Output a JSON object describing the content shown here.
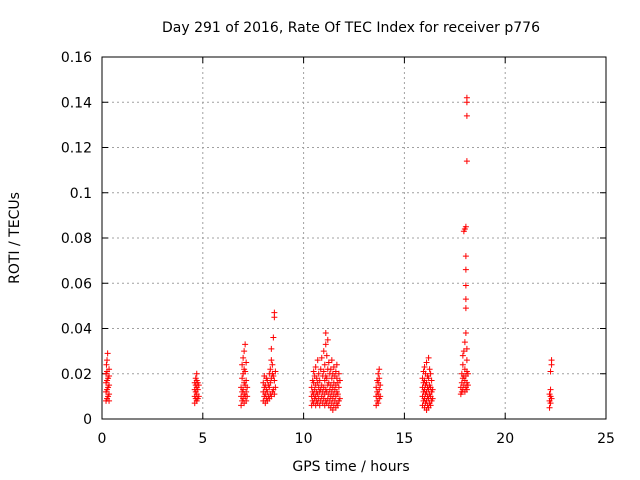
{
  "colors": {
    "marker": "#ff0000",
    "grid": "#a0a0a0",
    "axis": "#000000"
  },
  "chart_data": {
    "type": "scatter",
    "title": "Day 291 of 2016, Rate Of TEC Index for receiver p776",
    "xlabel": "GPS time / hours",
    "ylabel": "ROTI / TECUs",
    "xlim": [
      0,
      25
    ],
    "ylim": [
      0,
      0.16
    ],
    "xticks": [
      0,
      5,
      10,
      15,
      20,
      25
    ],
    "xtick_labels": [
      "0",
      "5",
      "10",
      "15",
      "20",
      "25"
    ],
    "yticks": [
      0,
      0.02,
      0.04,
      0.06,
      0.08,
      0.1,
      0.12,
      0.14,
      0.16
    ],
    "ytick_labels": [
      "0",
      "0.02",
      "0.04",
      "0.06",
      "0.08",
      "0.1",
      "0.12",
      "0.14",
      "0.16"
    ],
    "grid": true,
    "marker": "+",
    "series": [
      {
        "name": "ROTI",
        "points": [
          [
            0.2,
            0.008
          ],
          [
            0.2,
            0.012
          ],
          [
            0.2,
            0.016
          ],
          [
            0.2,
            0.02
          ],
          [
            0.22,
            0.024
          ],
          [
            0.25,
            0.009
          ],
          [
            0.25,
            0.013
          ],
          [
            0.25,
            0.017
          ],
          [
            0.25,
            0.021
          ],
          [
            0.25,
            0.026
          ],
          [
            0.28,
            0.029
          ],
          [
            0.3,
            0.01
          ],
          [
            0.3,
            0.014
          ],
          [
            0.3,
            0.018
          ],
          [
            0.35,
            0.011
          ],
          [
            0.35,
            0.015
          ],
          [
            0.35,
            0.019
          ],
          [
            0.35,
            0.008
          ],
          [
            0.35,
            0.022
          ],
          [
            4.6,
            0.007
          ],
          [
            4.6,
            0.01
          ],
          [
            4.6,
            0.013
          ],
          [
            4.6,
            0.016
          ],
          [
            4.65,
            0.009
          ],
          [
            4.65,
            0.012
          ],
          [
            4.65,
            0.015
          ],
          [
            4.65,
            0.018
          ],
          [
            4.7,
            0.008
          ],
          [
            4.7,
            0.011
          ],
          [
            4.7,
            0.014
          ],
          [
            4.7,
            0.017
          ],
          [
            4.7,
            0.02
          ],
          [
            4.75,
            0.009
          ],
          [
            4.75,
            0.013
          ],
          [
            4.75,
            0.016
          ],
          [
            4.8,
            0.01
          ],
          [
            4.8,
            0.015
          ],
          [
            6.9,
            0.006
          ],
          [
            6.9,
            0.01
          ],
          [
            6.9,
            0.014
          ],
          [
            6.95,
            0.008
          ],
          [
            6.95,
            0.012
          ],
          [
            6.95,
            0.018
          ],
          [
            6.95,
            0.024
          ],
          [
            7.0,
            0.009
          ],
          [
            7.0,
            0.013
          ],
          [
            7.0,
            0.02
          ],
          [
            7.0,
            0.027
          ],
          [
            7.05,
            0.007
          ],
          [
            7.05,
            0.011
          ],
          [
            7.05,
            0.016
          ],
          [
            7.05,
            0.022
          ],
          [
            7.05,
            0.03
          ],
          [
            7.1,
            0.01
          ],
          [
            7.1,
            0.015
          ],
          [
            7.1,
            0.021
          ],
          [
            7.1,
            0.033
          ],
          [
            7.15,
            0.008
          ],
          [
            7.15,
            0.012
          ],
          [
            7.15,
            0.017
          ],
          [
            7.15,
            0.025
          ],
          [
            7.2,
            0.01
          ],
          [
            7.2,
            0.014
          ],
          [
            8.0,
            0.008
          ],
          [
            8.0,
            0.012
          ],
          [
            8.0,
            0.016
          ],
          [
            8.05,
            0.01
          ],
          [
            8.05,
            0.014
          ],
          [
            8.05,
            0.019
          ],
          [
            8.1,
            0.007
          ],
          [
            8.1,
            0.011
          ],
          [
            8.1,
            0.015
          ],
          [
            8.15,
            0.009
          ],
          [
            8.15,
            0.013
          ],
          [
            8.15,
            0.018
          ],
          [
            8.2,
            0.008
          ],
          [
            8.2,
            0.012
          ],
          [
            8.2,
            0.017
          ],
          [
            8.25,
            0.01
          ],
          [
            8.25,
            0.015
          ],
          [
            8.3,
            0.009
          ],
          [
            8.3,
            0.014
          ],
          [
            8.3,
            0.02
          ],
          [
            8.35,
            0.011
          ],
          [
            8.35,
            0.016
          ],
          [
            8.35,
            0.022
          ],
          [
            8.4,
            0.01
          ],
          [
            8.4,
            0.018
          ],
          [
            8.4,
            0.026
          ],
          [
            8.4,
            0.031
          ],
          [
            8.45,
            0.012
          ],
          [
            8.45,
            0.02
          ],
          [
            8.45,
            0.024
          ],
          [
            8.5,
            0.013
          ],
          [
            8.5,
            0.019
          ],
          [
            8.5,
            0.036
          ],
          [
            8.55,
            0.011
          ],
          [
            8.55,
            0.017
          ],
          [
            8.55,
            0.045
          ],
          [
            8.55,
            0.047
          ],
          [
            8.6,
            0.014
          ],
          [
            8.6,
            0.021
          ],
          [
            10.4,
            0.006
          ],
          [
            10.4,
            0.01
          ],
          [
            10.4,
            0.014
          ],
          [
            10.45,
            0.008
          ],
          [
            10.45,
            0.012
          ],
          [
            10.45,
            0.017
          ],
          [
            10.5,
            0.007
          ],
          [
            10.5,
            0.011
          ],
          [
            10.5,
            0.016
          ],
          [
            10.5,
            0.021
          ],
          [
            10.55,
            0.009
          ],
          [
            10.55,
            0.013
          ],
          [
            10.55,
            0.019
          ],
          [
            10.6,
            0.006
          ],
          [
            10.6,
            0.01
          ],
          [
            10.6,
            0.015
          ],
          [
            10.6,
            0.023
          ],
          [
            10.65,
            0.008
          ],
          [
            10.65,
            0.012
          ],
          [
            10.65,
            0.018
          ],
          [
            10.7,
            0.007
          ],
          [
            10.7,
            0.011
          ],
          [
            10.7,
            0.016
          ],
          [
            10.7,
            0.026
          ],
          [
            10.75,
            0.009
          ],
          [
            10.75,
            0.014
          ],
          [
            10.75,
            0.02
          ],
          [
            10.8,
            0.006
          ],
          [
            10.8,
            0.012
          ],
          [
            10.8,
            0.017
          ],
          [
            10.85,
            0.008
          ],
          [
            10.85,
            0.013
          ],
          [
            10.85,
            0.022
          ],
          [
            10.9,
            0.01
          ],
          [
            10.9,
            0.015
          ],
          [
            10.9,
            0.027
          ],
          [
            10.95,
            0.007
          ],
          [
            10.95,
            0.012
          ],
          [
            10.95,
            0.019
          ],
          [
            11.0,
            0.009
          ],
          [
            11.0,
            0.014
          ],
          [
            11.0,
            0.021
          ],
          [
            11.0,
            0.03
          ],
          [
            11.05,
            0.006
          ],
          [
            11.05,
            0.011
          ],
          [
            11.05,
            0.017
          ],
          [
            11.05,
            0.024
          ],
          [
            11.1,
            0.008
          ],
          [
            11.1,
            0.013
          ],
          [
            11.1,
            0.019
          ],
          [
            11.1,
            0.033
          ],
          [
            11.1,
            0.038
          ],
          [
            11.15,
            0.007
          ],
          [
            11.15,
            0.012
          ],
          [
            11.15,
            0.018
          ],
          [
            11.15,
            0.028
          ],
          [
            11.2,
            0.009
          ],
          [
            11.2,
            0.015
          ],
          [
            11.2,
            0.022
          ],
          [
            11.2,
            0.035
          ],
          [
            11.25,
            0.006
          ],
          [
            11.25,
            0.011
          ],
          [
            11.25,
            0.016
          ],
          [
            11.25,
            0.025
          ],
          [
            11.3,
            0.008
          ],
          [
            11.3,
            0.013
          ],
          [
            11.3,
            0.02
          ],
          [
            11.35,
            0.005
          ],
          [
            11.35,
            0.01
          ],
          [
            11.35,
            0.015
          ],
          [
            11.35,
            0.022
          ],
          [
            11.4,
            0.007
          ],
          [
            11.4,
            0.012
          ],
          [
            11.4,
            0.018
          ],
          [
            11.4,
            0.026
          ],
          [
            11.45,
            0.004
          ],
          [
            11.45,
            0.009
          ],
          [
            11.45,
            0.014
          ],
          [
            11.45,
            0.02
          ],
          [
            11.5,
            0.006
          ],
          [
            11.5,
            0.011
          ],
          [
            11.5,
            0.016
          ],
          [
            11.5,
            0.023
          ],
          [
            11.55,
            0.008
          ],
          [
            11.55,
            0.013
          ],
          [
            11.55,
            0.019
          ],
          [
            11.6,
            0.005
          ],
          [
            11.6,
            0.01
          ],
          [
            11.6,
            0.015
          ],
          [
            11.6,
            0.021
          ],
          [
            11.65,
            0.007
          ],
          [
            11.65,
            0.012
          ],
          [
            11.65,
            0.018
          ],
          [
            11.65,
            0.024
          ],
          [
            11.7,
            0.006
          ],
          [
            11.7,
            0.011
          ],
          [
            11.7,
            0.016
          ],
          [
            11.75,
            0.008
          ],
          [
            11.75,
            0.014
          ],
          [
            11.75,
            0.02
          ],
          [
            11.8,
            0.009
          ],
          [
            11.8,
            0.017
          ],
          [
            13.6,
            0.006
          ],
          [
            13.6,
            0.01
          ],
          [
            13.6,
            0.014
          ],
          [
            13.65,
            0.008
          ],
          [
            13.65,
            0.012
          ],
          [
            13.65,
            0.017
          ],
          [
            13.7,
            0.007
          ],
          [
            13.7,
            0.011
          ],
          [
            13.7,
            0.016
          ],
          [
            13.7,
            0.02
          ],
          [
            13.75,
            0.009
          ],
          [
            13.75,
            0.013
          ],
          [
            13.75,
            0.018
          ],
          [
            13.75,
            0.022
          ],
          [
            13.8,
            0.01
          ],
          [
            13.8,
            0.015
          ],
          [
            15.9,
            0.006
          ],
          [
            15.9,
            0.01
          ],
          [
            15.9,
            0.014
          ],
          [
            15.9,
            0.018
          ],
          [
            15.95,
            0.008
          ],
          [
            15.95,
            0.012
          ],
          [
            15.95,
            0.016
          ],
          [
            15.95,
            0.021
          ],
          [
            16.0,
            0.005
          ],
          [
            16.0,
            0.009
          ],
          [
            16.0,
            0.013
          ],
          [
            16.0,
            0.017
          ],
          [
            16.0,
            0.023
          ],
          [
            16.05,
            0.007
          ],
          [
            16.05,
            0.011
          ],
          [
            16.05,
            0.015
          ],
          [
            16.05,
            0.02
          ],
          [
            16.1,
            0.004
          ],
          [
            16.1,
            0.008
          ],
          [
            16.1,
            0.012
          ],
          [
            16.1,
            0.016
          ],
          [
            16.1,
            0.025
          ],
          [
            16.15,
            0.006
          ],
          [
            16.15,
            0.01
          ],
          [
            16.15,
            0.014
          ],
          [
            16.15,
            0.019
          ],
          [
            16.2,
            0.005
          ],
          [
            16.2,
            0.009
          ],
          [
            16.2,
            0.013
          ],
          [
            16.2,
            0.018
          ],
          [
            16.2,
            0.027
          ],
          [
            16.25,
            0.007
          ],
          [
            16.25,
            0.011
          ],
          [
            16.25,
            0.015
          ],
          [
            16.25,
            0.022
          ],
          [
            16.3,
            0.006
          ],
          [
            16.3,
            0.01
          ],
          [
            16.3,
            0.014
          ],
          [
            16.3,
            0.02
          ],
          [
            16.35,
            0.008
          ],
          [
            16.35,
            0.012
          ],
          [
            16.35,
            0.017
          ],
          [
            16.4,
            0.009
          ],
          [
            16.4,
            0.013
          ],
          [
            17.8,
            0.011
          ],
          [
            17.8,
            0.014
          ],
          [
            17.85,
            0.012
          ],
          [
            17.85,
            0.016
          ],
          [
            17.85,
            0.02
          ],
          [
            17.9,
            0.013
          ],
          [
            17.9,
            0.018
          ],
          [
            17.9,
            0.024
          ],
          [
            17.9,
            0.028
          ],
          [
            17.95,
            0.015
          ],
          [
            17.95,
            0.019
          ],
          [
            17.95,
            0.03
          ],
          [
            17.95,
            0.083
          ],
          [
            18.0,
            0.012
          ],
          [
            18.0,
            0.017
          ],
          [
            18.0,
            0.022
          ],
          [
            18.0,
            0.034
          ],
          [
            18.0,
            0.084
          ],
          [
            18.05,
            0.014
          ],
          [
            18.05,
            0.019
          ],
          [
            18.05,
            0.038
          ],
          [
            18.05,
            0.049
          ],
          [
            18.05,
            0.053
          ],
          [
            18.05,
            0.059
          ],
          [
            18.05,
            0.066
          ],
          [
            18.05,
            0.072
          ],
          [
            18.05,
            0.085
          ],
          [
            18.1,
            0.013
          ],
          [
            18.1,
            0.016
          ],
          [
            18.1,
            0.021
          ],
          [
            18.1,
            0.026
          ],
          [
            18.1,
            0.031
          ],
          [
            18.1,
            0.114
          ],
          [
            18.1,
            0.134
          ],
          [
            18.1,
            0.14
          ],
          [
            18.1,
            0.142
          ],
          [
            18.15,
            0.015
          ],
          [
            18.15,
            0.02
          ],
          [
            22.2,
            0.005
          ],
          [
            22.2,
            0.008
          ],
          [
            22.2,
            0.011
          ],
          [
            22.25,
            0.007
          ],
          [
            22.25,
            0.01
          ],
          [
            22.25,
            0.013
          ],
          [
            22.25,
            0.021
          ],
          [
            22.3,
            0.009
          ],
          [
            22.3,
            0.024
          ],
          [
            22.3,
            0.026
          ]
        ]
      }
    ]
  }
}
